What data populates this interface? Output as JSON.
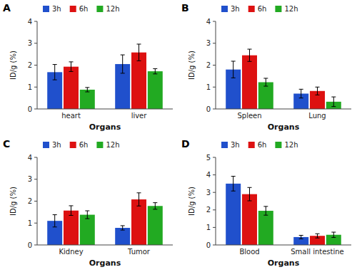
{
  "chart_data": [
    {
      "type": "bar",
      "title": "A",
      "xlabel": "Organs",
      "ylabel": "ID/g (%)",
      "categories": [
        "heart",
        "liver"
      ],
      "series": [
        {
          "name": "3h",
          "color": "#2050CC",
          "values": [
            1.68,
            2.05
          ],
          "errors": [
            0.35,
            0.42
          ]
        },
        {
          "name": "6h",
          "color": "#DD1111",
          "values": [
            1.93,
            2.58
          ],
          "errors": [
            0.22,
            0.38
          ]
        },
        {
          "name": "12h",
          "color": "#22AA22",
          "values": [
            0.88,
            1.72
          ],
          "errors": [
            0.1,
            0.12
          ]
        }
      ],
      "ylim": [
        0,
        4
      ],
      "yticks": [
        0,
        1,
        2,
        3,
        4
      ],
      "legend": "upper left"
    },
    {
      "type": "bar",
      "title": "B",
      "xlabel": "Organs",
      "ylabel": "ID/g (%)",
      "categories": [
        "Spleen",
        "Lung"
      ],
      "series": [
        {
          "name": "3h",
          "color": "#2050CC",
          "values": [
            1.8,
            0.7
          ],
          "errors": [
            0.38,
            0.2
          ]
        },
        {
          "name": "6h",
          "color": "#DD1111",
          "values": [
            2.45,
            0.82
          ],
          "errors": [
            0.28,
            0.18
          ]
        },
        {
          "name": "12h",
          "color": "#22AA22",
          "values": [
            1.22,
            0.33
          ],
          "errors": [
            0.18,
            0.22
          ]
        }
      ],
      "ylim": [
        0,
        4
      ],
      "yticks": [
        0,
        1,
        2,
        3,
        4
      ],
      "legend": "upper left"
    },
    {
      "type": "bar",
      "title": "C",
      "xlabel": "Organs",
      "ylabel": "ID/g (%)",
      "categories": [
        "Kidney",
        "Tumor"
      ],
      "series": [
        {
          "name": "3h",
          "color": "#2050CC",
          "values": [
            1.1,
            0.78
          ],
          "errors": [
            0.28,
            0.1
          ]
        },
        {
          "name": "6h",
          "color": "#DD1111",
          "values": [
            1.57,
            2.08
          ],
          "errors": [
            0.22,
            0.3
          ]
        },
        {
          "name": "12h",
          "color": "#22AA22",
          "values": [
            1.38,
            1.78
          ],
          "errors": [
            0.18,
            0.15
          ]
        }
      ],
      "ylim": [
        0,
        4
      ],
      "yticks": [
        0,
        1,
        2,
        3,
        4
      ],
      "legend": "upper left"
    },
    {
      "type": "bar",
      "title": "D",
      "xlabel": "Organs",
      "ylabel": "ID/g (%)",
      "categories": [
        "Blood",
        "Small intestine"
      ],
      "series": [
        {
          "name": "3h",
          "color": "#2050CC",
          "values": [
            3.5,
            0.45
          ],
          "errors": [
            0.42,
            0.1
          ]
        },
        {
          "name": "6h",
          "color": "#DD1111",
          "values": [
            2.9,
            0.52
          ],
          "errors": [
            0.38,
            0.12
          ]
        },
        {
          "name": "12h",
          "color": "#22AA22",
          "values": [
            1.95,
            0.58
          ],
          "errors": [
            0.25,
            0.15
          ]
        }
      ],
      "ylim": [
        0,
        5
      ],
      "yticks": [
        0,
        1,
        2,
        3,
        4,
        5
      ],
      "legend": "upper left"
    }
  ]
}
